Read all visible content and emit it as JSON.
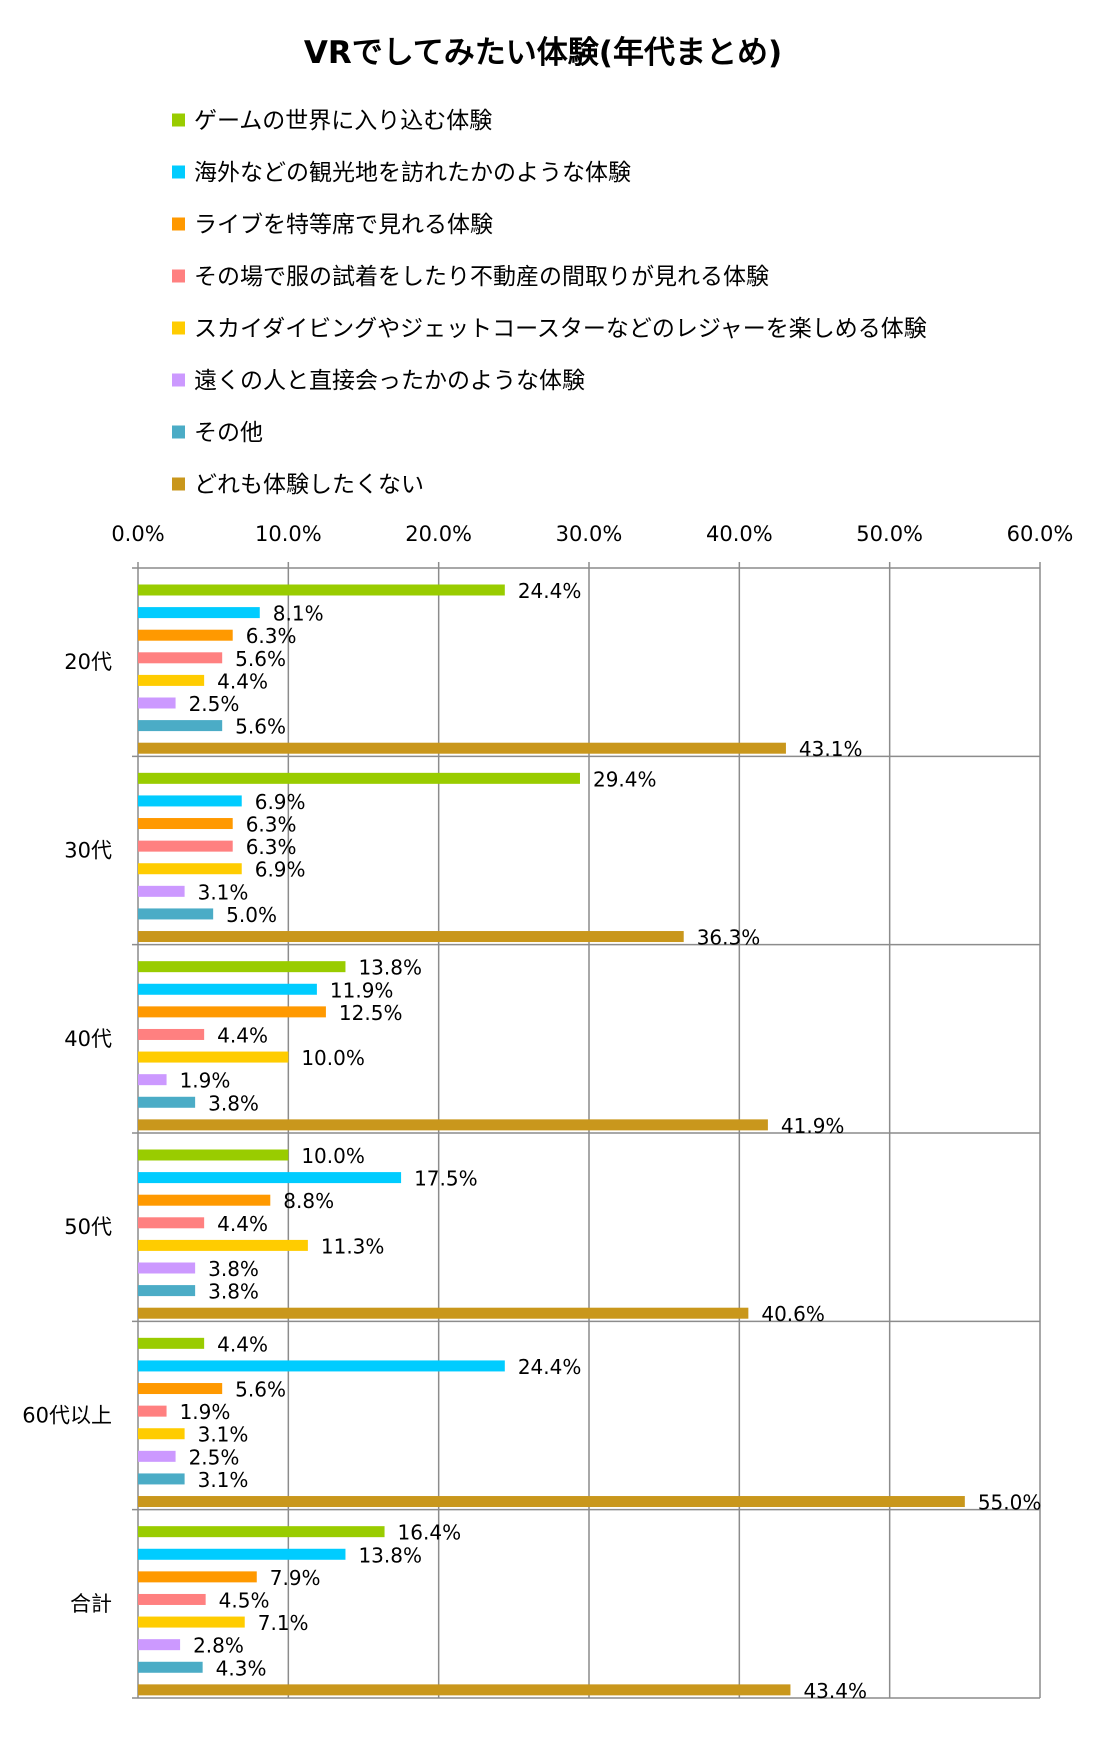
{
  "chart_data": {
    "type": "bar",
    "orientation": "horizontal",
    "title": "VRでしてみたい体験(年代まとめ)",
    "categories": [
      "20代",
      "30代",
      "40代",
      "50代",
      "60代以上",
      "合計"
    ],
    "xlim": [
      0,
      60
    ],
    "x_ticks": [
      "0.0%",
      "10.0%",
      "20.0%",
      "30.0%",
      "40.0%",
      "50.0%",
      "60.0%"
    ],
    "x_axis_position": "top",
    "grid": true,
    "legend_position": "top",
    "series": [
      {
        "name": "ゲームの世界に入り込む体験",
        "color": "#99cc00",
        "values": [
          24.4,
          29.4,
          13.8,
          10.0,
          4.4,
          16.4
        ],
        "labels": [
          "24.4%",
          "29.4%",
          "13.8%",
          "10.0%",
          "4.4%",
          "16.4%"
        ]
      },
      {
        "name": "海外などの観光地を訪れたかのような体験",
        "color": "#00ccff",
        "values": [
          8.1,
          6.9,
          11.9,
          17.5,
          24.4,
          13.8
        ],
        "labels": [
          "8.1%",
          "6.9%",
          "11.9%",
          "17.5%",
          "24.4%",
          "13.8%"
        ]
      },
      {
        "name": "ライブを特等席で見れる体験",
        "color": "#ff9900",
        "values": [
          6.3,
          6.3,
          12.5,
          8.8,
          5.6,
          7.9
        ],
        "labels": [
          "6.3%",
          "6.3%",
          "12.5%",
          "8.8%",
          "5.6%",
          "7.9%"
        ]
      },
      {
        "name": "その場で服の試着をしたり不動産の間取りが見れる体験",
        "color": "#ff8080",
        "values": [
          5.6,
          6.3,
          4.4,
          4.4,
          1.9,
          4.5
        ],
        "labels": [
          "5.6%",
          "6.3%",
          "4.4%",
          "4.4%",
          "1.9%",
          "4.5%"
        ]
      },
      {
        "name": "スカイダイビングやジェットコースターなどのレジャーを楽しめる体験",
        "color": "#ffcc00",
        "values": [
          4.4,
          6.9,
          10.0,
          11.3,
          3.1,
          7.1
        ],
        "labels": [
          "4.4%",
          "6.9%",
          "10.0%",
          "11.3%",
          "3.1%",
          "7.1%"
        ]
      },
      {
        "name": "遠くの人と直接会ったかのような体験",
        "color": "#cc99ff",
        "values": [
          2.5,
          3.1,
          1.9,
          3.8,
          2.5,
          2.8
        ],
        "labels": [
          "2.5%",
          "3.1%",
          "1.9%",
          "3.8%",
          "2.5%",
          "2.8%"
        ]
      },
      {
        "name": "その他",
        "color": "#4bacc6",
        "values": [
          5.6,
          5.0,
          3.8,
          3.8,
          3.1,
          4.3
        ],
        "labels": [
          "5.6%",
          "5.0%",
          "3.8%",
          "3.8%",
          "3.1%",
          "4.3%"
        ]
      },
      {
        "name": "どれも体験したくない",
        "color": "#c9971c",
        "values": [
          43.1,
          36.3,
          41.9,
          40.6,
          55.0,
          43.4
        ],
        "labels": [
          "43.1%",
          "36.3%",
          "41.9%",
          "40.6%",
          "55.0%",
          "43.4%"
        ]
      }
    ]
  }
}
